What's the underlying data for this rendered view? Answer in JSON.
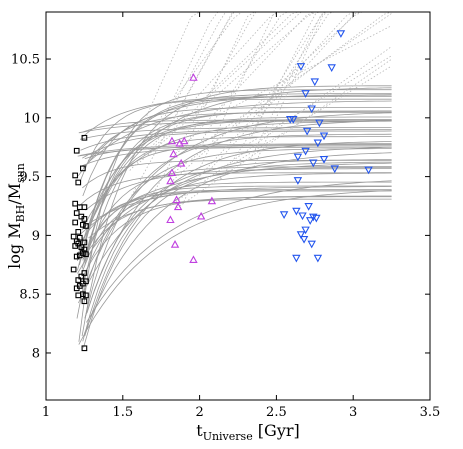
{
  "chart_data": {
    "type": "scatter",
    "xlabel_main": "t",
    "xlabel_sub": "Universe",
    "xlabel_unit": " [Gyr]",
    "ylabel_main": "log M",
    "ylabel_sub1": "BH",
    "ylabel_mid": "/M",
    "ylabel_sub2": "sun",
    "xlim": [
      1.0,
      3.5
    ],
    "ylim": [
      7.6,
      10.9
    ],
    "xticks": [
      1,
      1.5,
      2,
      2.5,
      3,
      3.5
    ],
    "xtick_labels": [
      "1",
      "1.5",
      "2",
      "2.5",
      "3",
      "3.5"
    ],
    "yticks": [
      8,
      8.5,
      9,
      9.5,
      10,
      10.5
    ],
    "ytick_labels": [
      "8",
      "8.5",
      "9",
      "9.5",
      "10",
      "10.5"
    ],
    "grid": false,
    "series": [
      {
        "marker": "square",
        "color": "#000000",
        "points": [
          [
            1.25,
            8.04
          ],
          [
            1.25,
            9.83
          ],
          [
            1.2,
            9.72
          ],
          [
            1.24,
            9.57
          ],
          [
            1.19,
            9.51
          ],
          [
            1.21,
            9.45
          ],
          [
            1.19,
            9.27
          ],
          [
            1.22,
            9.24
          ],
          [
            1.25,
            9.24
          ],
          [
            1.2,
            9.19
          ],
          [
            1.23,
            9.16
          ],
          [
            1.25,
            9.14
          ],
          [
            1.19,
            9.11
          ],
          [
            1.24,
            9.09
          ],
          [
            1.26,
            9.08
          ],
          [
            1.21,
            9.03
          ],
          [
            1.18,
            8.99
          ],
          [
            1.22,
            8.98
          ],
          [
            1.2,
            8.95
          ],
          [
            1.25,
            8.94
          ],
          [
            1.21,
            8.93
          ],
          [
            1.19,
            8.91
          ],
          [
            1.23,
            8.9
          ],
          [
            1.25,
            8.88
          ],
          [
            1.24,
            8.85
          ],
          [
            1.26,
            8.84
          ],
          [
            1.22,
            8.83
          ],
          [
            1.2,
            8.82
          ],
          [
            1.18,
            8.71
          ],
          [
            1.25,
            8.68
          ],
          [
            1.23,
            8.65
          ],
          [
            1.21,
            8.62
          ],
          [
            1.26,
            8.61
          ],
          [
            1.24,
            8.59
          ],
          [
            1.22,
            8.57
          ],
          [
            1.2,
            8.55
          ],
          [
            1.24,
            8.5
          ],
          [
            1.21,
            8.49
          ],
          [
            1.26,
            8.49
          ],
          [
            1.25,
            8.44
          ]
        ]
      },
      {
        "marker": "triangle-up",
        "color": "#c040e0",
        "points": [
          [
            1.96,
            10.34
          ],
          [
            1.82,
            9.8
          ],
          [
            1.87,
            9.78
          ],
          [
            1.9,
            9.8
          ],
          [
            1.83,
            9.69
          ],
          [
            1.88,
            9.61
          ],
          [
            1.82,
            9.53
          ],
          [
            1.81,
            9.46
          ],
          [
            1.85,
            9.3
          ],
          [
            2.08,
            9.29
          ],
          [
            1.86,
            9.24
          ],
          [
            1.81,
            9.13
          ],
          [
            2.01,
            9.16
          ],
          [
            1.84,
            8.92
          ],
          [
            1.96,
            8.79
          ]
        ]
      },
      {
        "marker": "triangle-down",
        "color": "#2255ee",
        "points": [
          [
            2.92,
            10.72
          ],
          [
            2.66,
            10.44
          ],
          [
            2.86,
            10.43
          ],
          [
            2.75,
            10.31
          ],
          [
            2.69,
            10.21
          ],
          [
            2.73,
            10.08
          ],
          [
            2.59,
            9.99
          ],
          [
            2.61,
            9.99
          ],
          [
            2.78,
            9.96
          ],
          [
            2.7,
            9.89
          ],
          [
            2.81,
            9.85
          ],
          [
            2.77,
            9.79
          ],
          [
            2.69,
            9.72
          ],
          [
            2.64,
            9.67
          ],
          [
            2.81,
            9.65
          ],
          [
            2.74,
            9.62
          ],
          [
            2.88,
            9.57
          ],
          [
            3.1,
            9.56
          ],
          [
            2.64,
            9.47
          ],
          [
            2.55,
            9.18
          ],
          [
            2.63,
            9.21
          ],
          [
            2.71,
            9.25
          ],
          [
            2.67,
            9.17
          ],
          [
            2.74,
            9.16
          ],
          [
            2.76,
            9.15
          ],
          [
            2.72,
            9.13
          ],
          [
            2.69,
            9.05
          ],
          [
            2.66,
            9.01
          ],
          [
            2.68,
            8.97
          ],
          [
            2.73,
            8.93
          ],
          [
            2.63,
            8.81
          ],
          [
            2.77,
            8.81
          ]
        ]
      }
    ],
    "solid_line_color": "#9a9a9a",
    "dotted_line_color": "#b8b8b8"
  }
}
